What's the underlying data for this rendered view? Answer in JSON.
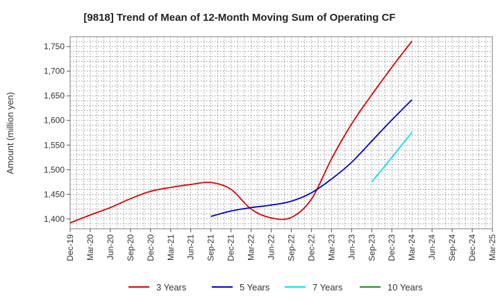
{
  "chart_data": {
    "type": "line",
    "title": "[9818]  Trend of Mean of 12-Month Moving Sum of Operating CF",
    "xlabel": "",
    "ylabel": "Amount (million yen)",
    "ylim": [
      1380,
      1770
    ],
    "yticks": [
      1400,
      1450,
      1500,
      1550,
      1600,
      1650,
      1700,
      1750
    ],
    "ytick_labels": [
      "1,400",
      "1,450",
      "1,500",
      "1,550",
      "1,600",
      "1,650",
      "1,700",
      "1,750"
    ],
    "categories": [
      "Dec-19",
      "Mar-20",
      "Jun-20",
      "Sep-20",
      "Dec-20",
      "Mar-21",
      "Jun-21",
      "Sep-21",
      "Dec-21",
      "Mar-22",
      "Jun-22",
      "Sep-22",
      "Dec-22",
      "Mar-23",
      "Jun-23",
      "Sep-23",
      "Dec-23",
      "Mar-24",
      "Jun-24",
      "Sep-24",
      "Dec-24",
      "Mar-25"
    ],
    "grid": true,
    "legend_position": "bottom",
    "series": [
      {
        "name": "3 Years",
        "color": "#dd0000",
        "values": [
          1392,
          1408,
          1423,
          1441,
          1456,
          1464,
          1470,
          1474,
          1460,
          1420,
          1402,
          1403,
          1440,
          1522,
          1593,
          1652,
          1708,
          1761,
          null,
          null,
          null,
          null
        ]
      },
      {
        "name": "5 Years",
        "color": "#0000cc",
        "values": [
          null,
          null,
          null,
          null,
          null,
          null,
          null,
          1405,
          1416,
          1423,
          1428,
          1436,
          1453,
          1481,
          1515,
          1558,
          1601,
          1642,
          null,
          null,
          null,
          null
        ]
      },
      {
        "name": "7 Years",
        "color": "#00e5ee",
        "values": [
          null,
          null,
          null,
          null,
          null,
          null,
          null,
          null,
          null,
          null,
          null,
          null,
          null,
          null,
          null,
          1475,
          1525,
          1576,
          null,
          null,
          null,
          null
        ]
      },
      {
        "name": "10 Years",
        "color": "#228b22",
        "values": [
          null,
          null,
          null,
          null,
          null,
          null,
          null,
          null,
          null,
          null,
          null,
          null,
          null,
          null,
          null,
          null,
          null,
          null,
          null,
          null,
          null,
          null
        ]
      }
    ]
  }
}
